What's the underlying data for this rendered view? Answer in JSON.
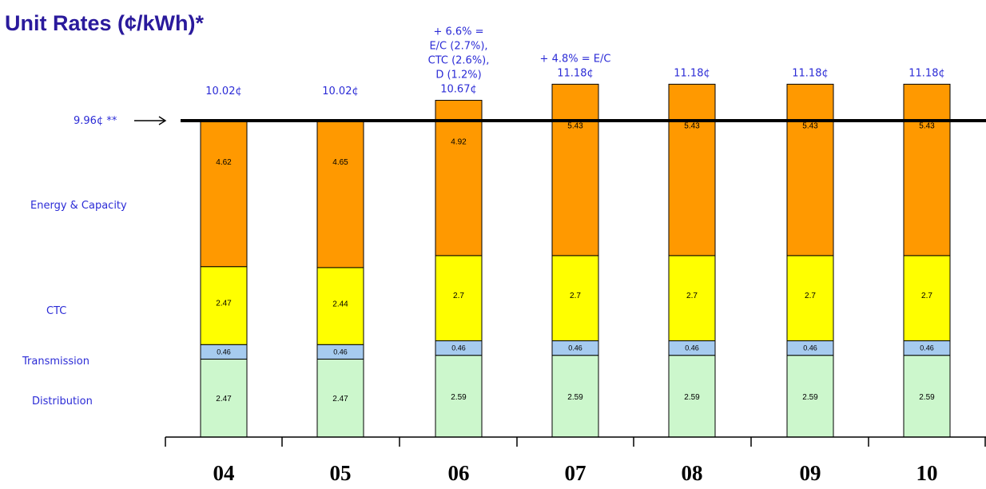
{
  "colors": {
    "title": "#2a1a9c",
    "label_text": "#2b2bd6",
    "energy_capacity": "#ff9900",
    "ctc": "#ffff00",
    "transmission": "#a6cbef",
    "distribution": "#ccf7cc"
  },
  "chart_data": {
    "type": "bar",
    "stacked": true,
    "title": "Unit Rates (¢/kWh)*",
    "categories": [
      "04",
      "05",
      "06",
      "07",
      "08",
      "09",
      "10"
    ],
    "series": [
      {
        "name": "Distribution",
        "values": [
          2.47,
          2.47,
          2.59,
          2.59,
          2.59,
          2.59,
          2.59
        ],
        "labels": [
          "2.47",
          "2.47",
          "2.59",
          "2.59",
          "2.59",
          "2.59",
          "2.59"
        ]
      },
      {
        "name": "Transmission",
        "values": [
          0.46,
          0.46,
          0.46,
          0.46,
          0.46,
          0.46,
          0.46
        ],
        "labels": [
          "0.46",
          "0.46",
          "0.46",
          "0.46",
          "0.46",
          "0.46",
          "0.46"
        ]
      },
      {
        "name": "CTC",
        "values": [
          2.47,
          2.44,
          2.7,
          2.7,
          2.7,
          2.7,
          2.7
        ],
        "labels": [
          "2.47",
          "2.44",
          "2.7",
          "2.7",
          "2.7",
          "2.7",
          "2.7"
        ]
      },
      {
        "name": "Energy & Capacity",
        "values": [
          4.62,
          4.65,
          4.92,
          5.43,
          5.43,
          5.43,
          5.43
        ],
        "labels": [
          "4.62",
          "4.65",
          "4.92",
          "5.43",
          "5.43",
          "5.43",
          "5.43"
        ]
      }
    ],
    "totals": [
      "10.02¢",
      "10.02¢",
      "10.67¢",
      "11.18¢",
      "11.18¢",
      "11.18¢",
      "11.18¢"
    ],
    "annotations": [
      {
        "category": "06",
        "lines": [
          "+ 6.6% =",
          "E/C (2.7%),",
          "CTC (2.6%),",
          "D (1.2%)"
        ]
      },
      {
        "category": "07",
        "lines": [
          "+ 4.8% = E/C"
        ]
      }
    ],
    "reference_line": {
      "value": 9.96,
      "label": "9.96¢ **"
    },
    "ylim": [
      0,
      11.18
    ],
    "grid": false,
    "legend": "left-side row labels"
  }
}
